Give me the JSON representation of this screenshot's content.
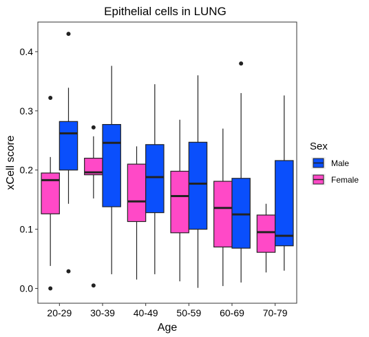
{
  "chart_data": {
    "type": "boxplot",
    "title": "Epithelial cells in LUNG",
    "xlabel": "Age",
    "ylabel": "xCell score",
    "ylim": [
      -0.025,
      0.45
    ],
    "yticks": [
      "0.0",
      "0.1",
      "0.2",
      "0.3",
      "0.4"
    ],
    "ytick_values": [
      0.0,
      0.1,
      0.2,
      0.3,
      0.4
    ],
    "categories": [
      "20-29",
      "30-39",
      "40-49",
      "50-59",
      "60-69",
      "70-79"
    ],
    "legend": {
      "title": "Sex",
      "placement": "right",
      "entries": [
        {
          "label": "Male",
          "color": "#0a4ffc"
        },
        {
          "label": "Female",
          "color": "#ff49c7"
        }
      ]
    },
    "series": [
      {
        "name": "Female",
        "color": "#ff49c7",
        "boxes": [
          {
            "category": "20-29",
            "whisker_low": 0.038,
            "q1": 0.126,
            "median": 0.183,
            "q3": 0.195,
            "whisker_high": 0.222,
            "outliers": [
              0.322,
              0.0
            ]
          },
          {
            "category": "30-39",
            "whisker_low": 0.152,
            "q1": 0.192,
            "median": 0.196,
            "q3": 0.22,
            "whisker_high": 0.257,
            "outliers": [
              0.272,
              0.005
            ]
          },
          {
            "category": "40-49",
            "whisker_low": 0.015,
            "q1": 0.113,
            "median": 0.147,
            "q3": 0.21,
            "whisker_high": 0.24,
            "outliers": []
          },
          {
            "category": "50-59",
            "whisker_low": 0.012,
            "q1": 0.094,
            "median": 0.156,
            "q3": 0.198,
            "whisker_high": 0.285,
            "outliers": []
          },
          {
            "category": "60-69",
            "whisker_low": 0.004,
            "q1": 0.07,
            "median": 0.136,
            "q3": 0.181,
            "whisker_high": 0.27,
            "outliers": []
          },
          {
            "category": "70-79",
            "whisker_low": 0.027,
            "q1": 0.061,
            "median": 0.095,
            "q3": 0.124,
            "whisker_high": 0.143,
            "outliers": []
          }
        ]
      },
      {
        "name": "Male",
        "color": "#0a4ffc",
        "boxes": [
          {
            "category": "20-29",
            "whisker_low": 0.143,
            "q1": 0.2,
            "median": 0.262,
            "q3": 0.282,
            "whisker_high": 0.339,
            "outliers": [
              0.43,
              0.029
            ]
          },
          {
            "category": "30-39",
            "whisker_low": 0.024,
            "q1": 0.138,
            "median": 0.246,
            "q3": 0.277,
            "whisker_high": 0.376,
            "outliers": []
          },
          {
            "category": "40-49",
            "whisker_low": 0.024,
            "q1": 0.128,
            "median": 0.188,
            "q3": 0.243,
            "whisker_high": 0.345,
            "outliers": []
          },
          {
            "category": "50-59",
            "whisker_low": 0.001,
            "q1": 0.1,
            "median": 0.177,
            "q3": 0.247,
            "whisker_high": 0.36,
            "outliers": []
          },
          {
            "category": "60-69",
            "whisker_low": 0.01,
            "q1": 0.068,
            "median": 0.125,
            "q3": 0.186,
            "whisker_high": 0.33,
            "outliers": [
              0.38
            ]
          },
          {
            "category": "70-79",
            "whisker_low": 0.03,
            "q1": 0.072,
            "median": 0.089,
            "q3": 0.216,
            "whisker_high": 0.326,
            "outliers": []
          }
        ]
      }
    ]
  }
}
